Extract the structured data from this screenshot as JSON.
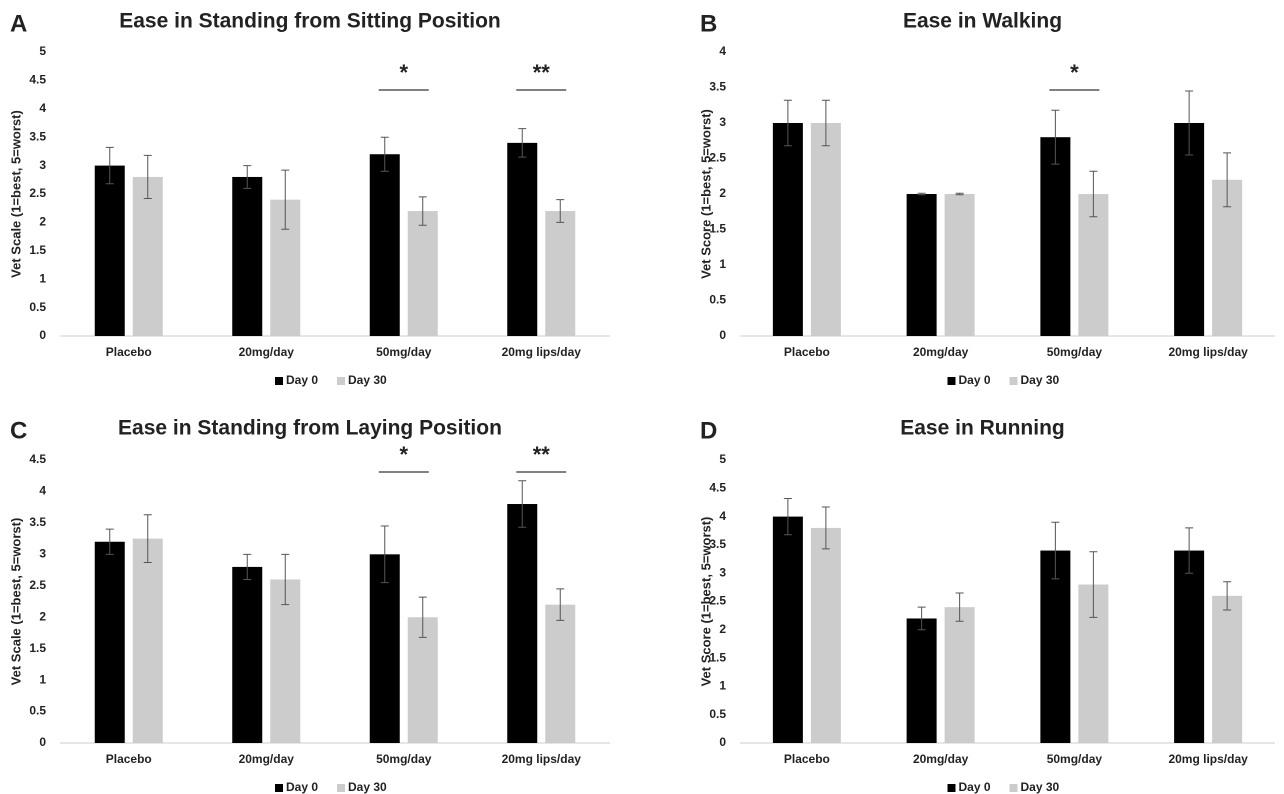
{
  "chart_data": [
    {
      "type": "bar",
      "panel": "A",
      "title": "Ease in Standing from Sitting Position",
      "ylabel": "Vet Scale (1=best, 5=worst)",
      "categories": [
        "Placebo",
        "20mg/day",
        "50mg/day",
        "20mg lips/day"
      ],
      "series": [
        {
          "name": "Day 0",
          "color": "#000000",
          "values": [
            3.0,
            2.8,
            3.2,
            3.4
          ],
          "errors": [
            0.32,
            0.2,
            0.3,
            0.25
          ]
        },
        {
          "name": "Day 30",
          "color": "#cccccc",
          "values": [
            2.8,
            2.4,
            2.2,
            2.2
          ],
          "errors": [
            0.38,
            0.52,
            0.25,
            0.2
          ]
        }
      ],
      "ylim": [
        0,
        5
      ],
      "yticks": [
        0,
        0.5,
        1,
        1.5,
        2,
        2.5,
        3,
        3.5,
        4,
        4.5,
        5
      ],
      "annotations": [
        {
          "text": "*",
          "category": "50mg/day"
        },
        {
          "text": "**",
          "category": "20mg lips/day"
        }
      ]
    },
    {
      "type": "bar",
      "panel": "B",
      "title": "Ease in Walking",
      "ylabel": "Vet Score (1=best, 5=worst)",
      "categories": [
        "Placebo",
        "20mg/day",
        "50mg/day",
        "20mg lips/day"
      ],
      "series": [
        {
          "name": "Day 0",
          "color": "#000000",
          "values": [
            3.0,
            2.0,
            2.8,
            3.0
          ],
          "errors": [
            0.32,
            0.01,
            0.38,
            0.45
          ]
        },
        {
          "name": "Day 30",
          "color": "#cccccc",
          "values": [
            3.0,
            2.0,
            2.0,
            2.2
          ],
          "errors": [
            0.32,
            0.01,
            0.32,
            0.38
          ]
        }
      ],
      "ylim": [
        0,
        4
      ],
      "yticks": [
        0,
        0.5,
        1,
        1.5,
        2,
        2.5,
        3,
        3.5,
        4
      ],
      "annotations": [
        {
          "text": "*",
          "category": "50mg/day"
        }
      ]
    },
    {
      "type": "bar",
      "panel": "C",
      "title": "Ease in Standing from Laying Position",
      "ylabel": "Vet Scale (1=best, 5=worst)",
      "categories": [
        "Placebo",
        "20mg/day",
        "50mg/day",
        "20mg lips/day"
      ],
      "series": [
        {
          "name": "Day 0",
          "color": "#000000",
          "values": [
            3.2,
            2.8,
            3.0,
            3.8
          ],
          "errors": [
            0.2,
            0.2,
            0.45,
            0.37
          ]
        },
        {
          "name": "Day 30",
          "color": "#cccccc",
          "values": [
            3.25,
            2.6,
            2.0,
            2.2
          ],
          "errors": [
            0.38,
            0.4,
            0.32,
            0.25
          ]
        }
      ],
      "ylim": [
        0,
        4.5
      ],
      "yticks": [
        0,
        0.5,
        1,
        1.5,
        2,
        2.5,
        3,
        3.5,
        4,
        4.5
      ],
      "annotations": [
        {
          "text": "*",
          "category": "50mg/day"
        },
        {
          "text": "**",
          "category": "20mg lips/day"
        }
      ]
    },
    {
      "type": "bar",
      "panel": "D",
      "title": "Ease in Running",
      "ylabel": "Vet Score (1=best, 5=worst)",
      "categories": [
        "Placebo",
        "20mg/day",
        "50mg/day",
        "20mg lips/day"
      ],
      "series": [
        {
          "name": "Day 0",
          "color": "#000000",
          "values": [
            4.0,
            2.2,
            3.4,
            3.4
          ],
          "errors": [
            0.32,
            0.2,
            0.5,
            0.4
          ]
        },
        {
          "name": "Day 30",
          "color": "#cccccc",
          "values": [
            3.8,
            2.4,
            2.8,
            2.6
          ],
          "errors": [
            0.37,
            0.25,
            0.58,
            0.25
          ]
        }
      ],
      "ylim": [
        0,
        5
      ],
      "yticks": [
        0,
        0.5,
        1,
        1.5,
        2,
        2.5,
        3,
        3.5,
        4,
        4.5,
        5
      ],
      "annotations": []
    }
  ]
}
